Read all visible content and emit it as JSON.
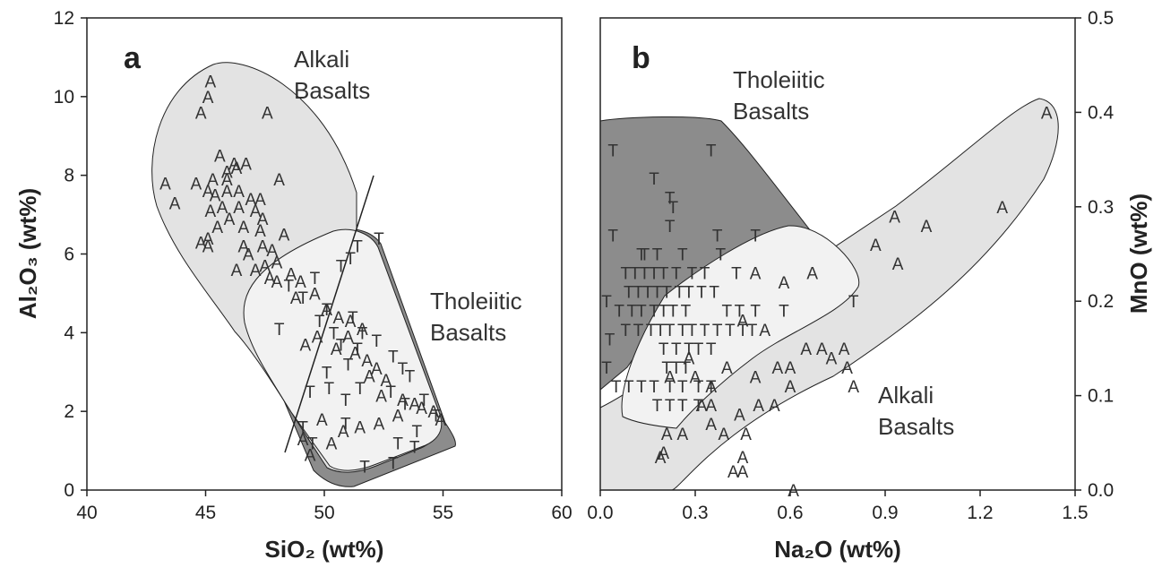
{
  "colors": {
    "alkali_fill": "#e3e3e3",
    "tholeiitic_fill": "#8c8c8c",
    "overlap_fill": "#f2f2f2",
    "axis": "#222222"
  },
  "chart_data": [
    {
      "type": "scatter",
      "panel": "a",
      "xlabel": "SiO₂ (wt%)",
      "ylabel": "Al₂O₃ (wt%)",
      "xlim": [
        40,
        60
      ],
      "ylim": [
        0,
        12
      ],
      "xticks": [
        "40",
        "45",
        "50",
        "55",
        "60"
      ],
      "yticks": [
        "0",
        "2",
        "4",
        "6",
        "8",
        "10",
        "12"
      ],
      "regions": [
        {
          "label_lines": [
            "Alkali",
            "Basalts"
          ]
        },
        {
          "label_lines": [
            "Tholeiitic",
            "Basalts"
          ]
        }
      ],
      "divider_line": [
        [
          48.6,
          1.0
        ],
        [
          53.0,
          8.0
        ]
      ],
      "series": [
        {
          "marker": "A",
          "points": [
            [
              45.2,
              10.4
            ],
            [
              45.1,
              10.0
            ],
            [
              44.8,
              9.6
            ],
            [
              47.6,
              9.6
            ],
            [
              45.6,
              8.5
            ],
            [
              46.2,
              8.3
            ],
            [
              45.9,
              8.1
            ],
            [
              46.3,
              8.2
            ],
            [
              46.7,
              8.3
            ],
            [
              45.3,
              7.9
            ],
            [
              45.9,
              7.9
            ],
            [
              48.1,
              7.9
            ],
            [
              43.3,
              7.8
            ],
            [
              44.6,
              7.8
            ],
            [
              45.1,
              7.6
            ],
            [
              45.9,
              7.6
            ],
            [
              46.4,
              7.6
            ],
            [
              45.4,
              7.5
            ],
            [
              46.9,
              7.4
            ],
            [
              47.3,
              7.4
            ],
            [
              43.7,
              7.3
            ],
            [
              45.2,
              7.1
            ],
            [
              45.7,
              7.2
            ],
            [
              46.4,
              7.2
            ],
            [
              47.1,
              7.1
            ],
            [
              47.4,
              6.9
            ],
            [
              46.0,
              6.9
            ],
            [
              45.5,
              6.7
            ],
            [
              46.6,
              6.7
            ],
            [
              45.1,
              6.4
            ],
            [
              47.3,
              6.6
            ],
            [
              45.1,
              6.2
            ],
            [
              44.8,
              6.3
            ],
            [
              46.6,
              6.2
            ],
            [
              47.4,
              6.2
            ],
            [
              48.3,
              6.5
            ],
            [
              46.8,
              6.0
            ],
            [
              47.8,
              6.1
            ],
            [
              48.0,
              5.8
            ],
            [
              47.5,
              5.7
            ],
            [
              47.1,
              5.6
            ],
            [
              46.3,
              5.6
            ],
            [
              47.7,
              5.4
            ],
            [
              48.0,
              5.3
            ],
            [
              48.6,
              5.5
            ],
            [
              49.0,
              5.3
            ],
            [
              48.8,
              4.9
            ],
            [
              49.6,
              5.0
            ],
            [
              50.1,
              4.6
            ],
            [
              50.6,
              4.4
            ],
            [
              51.1,
              4.3
            ],
            [
              51.6,
              4.1
            ],
            [
              51.0,
              3.9
            ],
            [
              50.5,
              3.6
            ],
            [
              49.7,
              3.9
            ],
            [
              49.2,
              3.7
            ],
            [
              51.3,
              3.5
            ],
            [
              51.8,
              3.3
            ],
            [
              52.2,
              3.1
            ],
            [
              51.9,
              2.9
            ],
            [
              52.6,
              2.8
            ],
            [
              52.4,
              2.4
            ],
            [
              53.3,
              2.3
            ],
            [
              53.8,
              2.2
            ],
            [
              54.1,
              2.1
            ],
            [
              54.6,
              2.0
            ],
            [
              54.9,
              1.8
            ],
            [
              53.1,
              1.9
            ],
            [
              52.3,
              1.7
            ],
            [
              51.5,
              1.6
            ],
            [
              50.8,
              1.5
            ],
            [
              49.9,
              1.8
            ],
            [
              49.1,
              1.3
            ],
            [
              50.3,
              1.2
            ],
            [
              49.4,
              0.9
            ]
          ]
        },
        {
          "marker": "T",
          "points": [
            [
              52.3,
              6.4
            ],
            [
              51.4,
              6.2
            ],
            [
              51.1,
              5.9
            ],
            [
              50.7,
              5.7
            ],
            [
              49.6,
              5.4
            ],
            [
              48.5,
              5.2
            ],
            [
              49.1,
              4.9
            ],
            [
              50.1,
              4.6
            ],
            [
              49.8,
              4.3
            ],
            [
              50.4,
              4.0
            ],
            [
              51.2,
              4.4
            ],
            [
              51.6,
              4.0
            ],
            [
              48.1,
              4.1
            ],
            [
              50.7,
              3.7
            ],
            [
              51.4,
              3.6
            ],
            [
              52.2,
              3.8
            ],
            [
              52.9,
              3.4
            ],
            [
              53.3,
              3.1
            ],
            [
              53.6,
              2.9
            ],
            [
              52.8,
              2.5
            ],
            [
              53.4,
              2.2
            ],
            [
              54.2,
              2.3
            ],
            [
              54.7,
              1.9
            ],
            [
              53.9,
              1.5
            ],
            [
              53.1,
              1.2
            ],
            [
              51.7,
              0.6
            ],
            [
              52.9,
              0.7
            ],
            [
              51.5,
              2.6
            ],
            [
              50.9,
              2.3
            ],
            [
              50.2,
              2.6
            ],
            [
              49.4,
              2.5
            ],
            [
              50.9,
              1.7
            ],
            [
              49.1,
              1.6
            ],
            [
              49.5,
              1.2
            ],
            [
              53.8,
              1.1
            ],
            [
              50.1,
              3.0
            ],
            [
              51.0,
              3.2
            ]
          ]
        }
      ]
    },
    {
      "type": "scatter",
      "panel": "b",
      "xlabel": "Na₂O (wt%)",
      "ylabel": "MnO (wt%)",
      "xlim": [
        0,
        1.5
      ],
      "ylim": [
        0,
        0.5
      ],
      "xticks": [
        "0.0",
        "0.3",
        "0.6",
        "0.9",
        "1.2",
        "1.5"
      ],
      "yticks": [
        "0.0",
        "0.1",
        "0.2",
        "0.3",
        "0.4",
        "0.5"
      ],
      "regions": [
        {
          "label_lines": [
            "Tholeiitic",
            "Basalts"
          ]
        },
        {
          "label_lines": [
            "Alkali",
            "Basalts"
          ]
        }
      ],
      "series": [
        {
          "marker": "A",
          "points": [
            [
              1.41,
              0.4
            ],
            [
              1.27,
              0.3
            ],
            [
              0.93,
              0.29
            ],
            [
              1.03,
              0.28
            ],
            [
              0.87,
              0.26
            ],
            [
              0.94,
              0.24
            ],
            [
              0.49,
              0.23
            ],
            [
              0.58,
              0.22
            ],
            [
              0.67,
              0.23
            ],
            [
              0.45,
              0.18
            ],
            [
              0.52,
              0.17
            ],
            [
              0.7,
              0.15
            ],
            [
              0.73,
              0.14
            ],
            [
              0.77,
              0.15
            ],
            [
              0.65,
              0.15
            ],
            [
              0.6,
              0.13
            ],
            [
              0.56,
              0.13
            ],
            [
              0.49,
              0.12
            ],
            [
              0.4,
              0.13
            ],
            [
              0.35,
              0.11
            ],
            [
              0.3,
              0.12
            ],
            [
              0.28,
              0.14
            ],
            [
              0.22,
              0.12
            ],
            [
              0.35,
              0.09
            ],
            [
              0.44,
              0.08
            ],
            [
              0.5,
              0.09
            ],
            [
              0.55,
              0.09
            ],
            [
              0.6,
              0.11
            ],
            [
              0.46,
              0.06
            ],
            [
              0.39,
              0.06
            ],
            [
              0.35,
              0.07
            ],
            [
              0.32,
              0.09
            ],
            [
              0.26,
              0.06
            ],
            [
              0.21,
              0.06
            ],
            [
              0.2,
              0.04
            ],
            [
              0.45,
              0.035
            ],
            [
              0.45,
              0.02
            ],
            [
              0.42,
              0.02
            ],
            [
              0.19,
              0.035
            ],
            [
              0.61,
              0.0
            ],
            [
              0.8,
              0.11
            ],
            [
              0.78,
              0.13
            ]
          ]
        },
        {
          "marker": "T",
          "points": [
            [
              0.04,
              0.36
            ],
            [
              0.35,
              0.36
            ],
            [
              0.17,
              0.33
            ],
            [
              0.22,
              0.31
            ],
            [
              0.23,
              0.3
            ],
            [
              0.04,
              0.27
            ],
            [
              0.22,
              0.28
            ],
            [
              0.37,
              0.27
            ],
            [
              0.49,
              0.27
            ],
            [
              0.13,
              0.25
            ],
            [
              0.14,
              0.25
            ],
            [
              0.18,
              0.25
            ],
            [
              0.26,
              0.25
            ],
            [
              0.38,
              0.25
            ],
            [
              0.08,
              0.23
            ],
            [
              0.11,
              0.23
            ],
            [
              0.14,
              0.23
            ],
            [
              0.17,
              0.23
            ],
            [
              0.2,
              0.23
            ],
            [
              0.24,
              0.23
            ],
            [
              0.29,
              0.23
            ],
            [
              0.33,
              0.23
            ],
            [
              0.43,
              0.23
            ],
            [
              0.09,
              0.21
            ],
            [
              0.12,
              0.21
            ],
            [
              0.15,
              0.21
            ],
            [
              0.18,
              0.21
            ],
            [
              0.21,
              0.21
            ],
            [
              0.25,
              0.21
            ],
            [
              0.28,
              0.21
            ],
            [
              0.32,
              0.21
            ],
            [
              0.36,
              0.21
            ],
            [
              0.02,
              0.2
            ],
            [
              0.06,
              0.19
            ],
            [
              0.1,
              0.19
            ],
            [
              0.13,
              0.19
            ],
            [
              0.17,
              0.19
            ],
            [
              0.2,
              0.19
            ],
            [
              0.23,
              0.19
            ],
            [
              0.27,
              0.19
            ],
            [
              0.4,
              0.19
            ],
            [
              0.44,
              0.19
            ],
            [
              0.49,
              0.19
            ],
            [
              0.58,
              0.19
            ],
            [
              0.08,
              0.17
            ],
            [
              0.12,
              0.17
            ],
            [
              0.16,
              0.17
            ],
            [
              0.19,
              0.17
            ],
            [
              0.22,
              0.17
            ],
            [
              0.26,
              0.17
            ],
            [
              0.29,
              0.17
            ],
            [
              0.33,
              0.17
            ],
            [
              0.37,
              0.17
            ],
            [
              0.41,
              0.17
            ],
            [
              0.45,
              0.17
            ],
            [
              0.48,
              0.17
            ],
            [
              0.03,
              0.16
            ],
            [
              0.2,
              0.15
            ],
            [
              0.24,
              0.15
            ],
            [
              0.28,
              0.15
            ],
            [
              0.31,
              0.15
            ],
            [
              0.35,
              0.15
            ],
            [
              0.21,
              0.13
            ],
            [
              0.24,
              0.13
            ],
            [
              0.27,
              0.13
            ],
            [
              0.02,
              0.13
            ],
            [
              0.05,
              0.11
            ],
            [
              0.09,
              0.11
            ],
            [
              0.13,
              0.11
            ],
            [
              0.17,
              0.11
            ],
            [
              0.22,
              0.11
            ],
            [
              0.26,
              0.11
            ],
            [
              0.31,
              0.11
            ],
            [
              0.35,
              0.11
            ],
            [
              0.18,
              0.09
            ],
            [
              0.22,
              0.09
            ],
            [
              0.26,
              0.09
            ],
            [
              0.31,
              0.09
            ],
            [
              0.8,
              0.2
            ]
          ]
        }
      ]
    }
  ]
}
